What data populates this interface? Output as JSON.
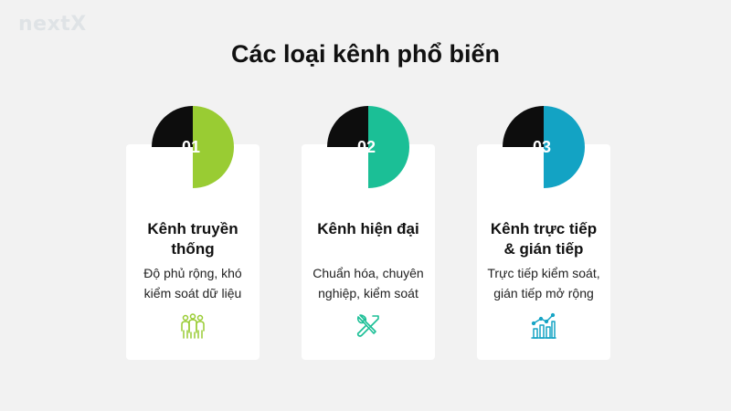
{
  "logo": {
    "text": "nextX"
  },
  "title": "Các loại kênh phổ biến",
  "cards": [
    {
      "number": "01",
      "title": "Kênh truyền thống",
      "description": "Độ phủ rộng, khó kiểm soát dữ liệu",
      "icon": "people-group-icon",
      "color": "#99cc33"
    },
    {
      "number": "02",
      "title": "Kênh hiện đại",
      "description": "Chuẩn hóa, chuyên nghiệp, kiểm soát",
      "icon": "wrench-screwdriver-icon",
      "color": "#1bbf96"
    },
    {
      "number": "03",
      "title": "Kênh trực tiếp & gián tiếp",
      "description": "Trực tiếp kiểm soát, gián tiếp mở rộng",
      "icon": "growth-chart-icon",
      "color": "#13a3c4"
    }
  ],
  "colors": {
    "background": "#f2f2f2",
    "badge_dark": "#0d0d0d",
    "card": "#ffffff"
  }
}
